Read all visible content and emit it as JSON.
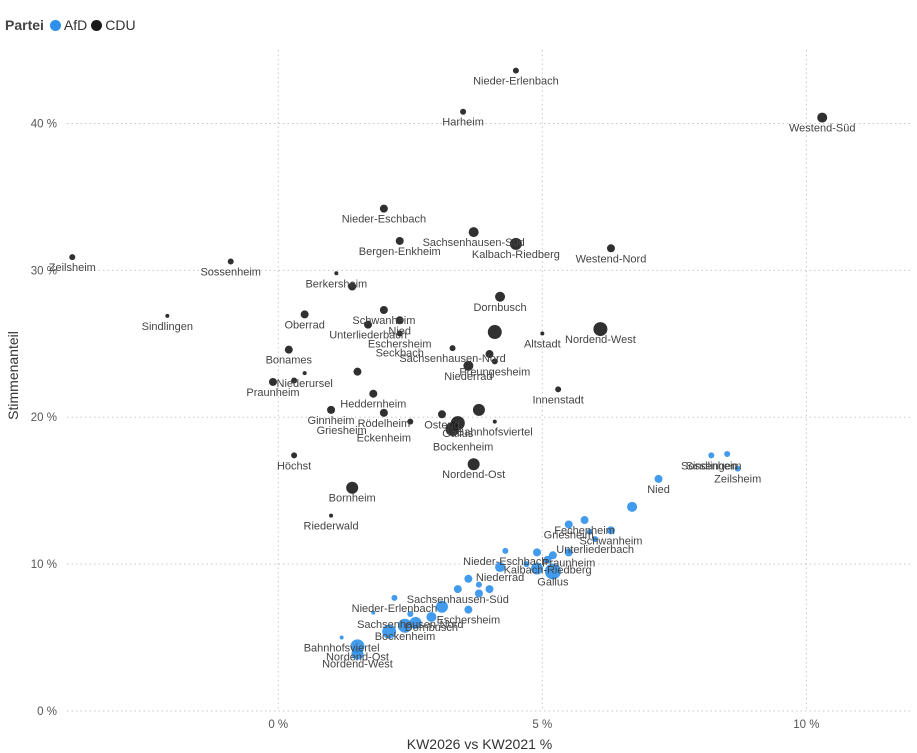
{
  "chart_data": {
    "type": "scatter",
    "legend_title": "Partei",
    "xlabel": "KW2026 vs KW2021 %",
    "ylabel": "Stimmenanteil",
    "xlim": [
      -4,
      12
    ],
    "ylim": [
      0,
      45
    ],
    "x_ticks": [
      "0 %",
      "5 %",
      "10 %"
    ],
    "y_ticks": [
      "0 %",
      "10 %",
      "20 %",
      "30 %",
      "40 %"
    ],
    "x_tick_values": [
      0,
      5,
      10
    ],
    "y_tick_values": [
      0,
      10,
      20,
      30,
      40
    ],
    "grid": true,
    "legend_position": "top-left",
    "series": [
      {
        "name": "AfD",
        "color": "#2d90ea",
        "points": [
          {
            "label": "Sindlingen",
            "x": 8.2,
            "y": 17.4,
            "size": 3
          },
          {
            "label": "",
            "x": 8.5,
            "y": 17.5,
            "size": 3
          },
          {
            "label": "Sossenheim",
            "x": 8.2,
            "y": 17.4,
            "size": 0
          },
          {
            "label": "Zeilsheim",
            "x": 8.7,
            "y": 16.5,
            "size": 3
          },
          {
            "label": "Nied",
            "x": 7.2,
            "y": 15.8,
            "size": 4
          },
          {
            "label": "",
            "x": 6.7,
            "y": 13.9,
            "size": 5
          },
          {
            "label": "Fechenheim",
            "x": 5.8,
            "y": 13.0,
            "size": 4
          },
          {
            "label": "Griesheim",
            "x": 5.5,
            "y": 12.7,
            "size": 4
          },
          {
            "label": "Schwanheim",
            "x": 6.3,
            "y": 12.3,
            "size": 4
          },
          {
            "label": "Unterliederbach",
            "x": 6.0,
            "y": 11.7,
            "size": 3
          },
          {
            "label": "",
            "x": 5.9,
            "y": 12.2,
            "size": 3
          },
          {
            "label": "Nieder-Eschbach",
            "x": 4.3,
            "y": 10.9,
            "size": 3
          },
          {
            "label": "Praunheim",
            "x": 5.5,
            "y": 10.8,
            "size": 4
          },
          {
            "label": "",
            "x": 5.2,
            "y": 10.6,
            "size": 4
          },
          {
            "label": "",
            "x": 4.9,
            "y": 10.8,
            "size": 4
          },
          {
            "label": "Kalbach-Riedberg",
            "x": 5.1,
            "y": 10.3,
            "size": 4
          },
          {
            "label": "",
            "x": 4.7,
            "y": 10.0,
            "size": 3
          },
          {
            "label": "Niederrad",
            "x": 4.2,
            "y": 9.8,
            "size": 5
          },
          {
            "label": "",
            "x": 4.9,
            "y": 9.7,
            "size": 6
          },
          {
            "label": "Gallus",
            "x": 5.2,
            "y": 9.5,
            "size": 8
          },
          {
            "label": "",
            "x": 3.6,
            "y": 9.0,
            "size": 4
          },
          {
            "label": "",
            "x": 3.8,
            "y": 8.6,
            "size": 3
          },
          {
            "label": "Sachsenhausen-Süd",
            "x": 3.4,
            "y": 8.3,
            "size": 4
          },
          {
            "label": "",
            "x": 3.8,
            "y": 8.0,
            "size": 4
          },
          {
            "label": "",
            "x": 4.0,
            "y": 8.3,
            "size": 4
          },
          {
            "label": "Nieder-Erlenbach",
            "x": 2.2,
            "y": 7.7,
            "size": 3
          },
          {
            "label": "Eschersheim",
            "x": 3.6,
            "y": 6.9,
            "size": 4
          },
          {
            "label": "",
            "x": 3.1,
            "y": 7.1,
            "size": 6
          },
          {
            "label": "Sachsenhausen-Nord",
            "x": 2.5,
            "y": 6.6,
            "size": 3
          },
          {
            "label": "",
            "x": 1.8,
            "y": 6.7,
            "size": 2
          },
          {
            "label": "Dornbusch",
            "x": 2.9,
            "y": 6.4,
            "size": 5
          },
          {
            "label": "",
            "x": 2.6,
            "y": 6.0,
            "size": 6
          },
          {
            "label": "Bockenheim",
            "x": 2.4,
            "y": 5.8,
            "size": 7
          },
          {
            "label": "",
            "x": 2.1,
            "y": 5.4,
            "size": 7
          },
          {
            "label": "Bahnhofsviertel",
            "x": 1.2,
            "y": 5.0,
            "size": 2
          },
          {
            "label": "Nordend-Ost",
            "x": 1.5,
            "y": 4.4,
            "size": 7
          },
          {
            "label": "Nordend-West",
            "x": 1.5,
            "y": 3.9,
            "size": 6
          }
        ]
      },
      {
        "name": "CDU",
        "color": "#1a1a1a",
        "points": [
          {
            "label": "Nieder-Erlenbach",
            "x": 4.5,
            "y": 43.6,
            "size": 3
          },
          {
            "label": "Harheim",
            "x": 3.5,
            "y": 40.8,
            "size": 3
          },
          {
            "label": "Westend-Süd",
            "x": 10.3,
            "y": 40.4,
            "size": 5
          },
          {
            "label": "Nieder-Eschbach",
            "x": 2.0,
            "y": 34.2,
            "size": 4
          },
          {
            "label": "Sachsenhausen-Süd",
            "x": 3.7,
            "y": 32.6,
            "size": 5
          },
          {
            "label": "Bergen-Enkheim",
            "x": 2.3,
            "y": 32.0,
            "size": 4
          },
          {
            "label": "Kalbach-Riedberg",
            "x": 4.5,
            "y": 31.8,
            "size": 6
          },
          {
            "label": "Westend-Nord",
            "x": 6.3,
            "y": 31.5,
            "size": 4
          },
          {
            "label": "Zeilsheim",
            "x": -3.9,
            "y": 30.9,
            "size": 3
          },
          {
            "label": "Sossenheim",
            "x": -0.9,
            "y": 30.6,
            "size": 3
          },
          {
            "label": "Berkersheim",
            "x": 1.1,
            "y": 29.8,
            "size": 2
          },
          {
            "label": "",
            "x": 1.4,
            "y": 28.9,
            "size": 4
          },
          {
            "label": "Dornbusch",
            "x": 4.2,
            "y": 28.2,
            "size": 5
          },
          {
            "label": "Oberrad",
            "x": 0.5,
            "y": 27.0,
            "size": 4
          },
          {
            "label": "Sindlingen",
            "x": -2.1,
            "y": 26.9,
            "size": 2
          },
          {
            "label": "Schwanheim",
            "x": 2.0,
            "y": 27.3,
            "size": 4
          },
          {
            "label": "Nied",
            "x": 2.3,
            "y": 26.6,
            "size": 4
          },
          {
            "label": "Unterliederbach",
            "x": 1.7,
            "y": 26.3,
            "size": 4
          },
          {
            "label": "Eschersheim",
            "x": 2.3,
            "y": 25.7,
            "size": 3
          },
          {
            "label": "",
            "x": 4.1,
            "y": 25.8,
            "size": 7
          },
          {
            "label": "Nordend-West",
            "x": 6.1,
            "y": 26.0,
            "size": 7
          },
          {
            "label": "Altstadt",
            "x": 5.0,
            "y": 25.7,
            "size": 2
          },
          {
            "label": "Bonames",
            "x": 0.2,
            "y": 24.6,
            "size": 4
          },
          {
            "label": "Sachsenhausen-Nord",
            "x": 3.3,
            "y": 24.7,
            "size": 3
          },
          {
            "label": "",
            "x": 4.0,
            "y": 24.3,
            "size": 4
          },
          {
            "label": "Seckbach",
            "x": 2.3,
            "y": 25.1,
            "size": 0
          },
          {
            "label": "Preungesheim",
            "x": 4.1,
            "y": 23.8,
            "size": 3
          },
          {
            "label": "Niederursel",
            "x": 0.5,
            "y": 23.0,
            "size": 2
          },
          {
            "label": "",
            "x": 1.5,
            "y": 23.1,
            "size": 4
          },
          {
            "label": "Niederrad",
            "x": 3.6,
            "y": 23.5,
            "size": 5
          },
          {
            "label": "Praunheim",
            "x": -0.1,
            "y": 22.4,
            "size": 4
          },
          {
            "label": "",
            "x": 0.3,
            "y": 22.5,
            "size": 3
          },
          {
            "label": "Heddernheim",
            "x": 1.8,
            "y": 21.6,
            "size": 4
          },
          {
            "label": "Innenstadt",
            "x": 5.3,
            "y": 21.9,
            "size": 3
          },
          {
            "label": "Ginnheim",
            "x": 1.0,
            "y": 20.5,
            "size": 4
          },
          {
            "label": "Rödelheim",
            "x": 2.0,
            "y": 20.3,
            "size": 4
          },
          {
            "label": "Ostend",
            "x": 3.1,
            "y": 20.2,
            "size": 4
          },
          {
            "label": "Griesheim",
            "x": 1.2,
            "y": 19.8,
            "size": 0
          },
          {
            "label": "",
            "x": 2.5,
            "y": 19.7,
            "size": 3
          },
          {
            "label": "Gallus",
            "x": 3.4,
            "y": 19.6,
            "size": 7
          },
          {
            "label": "",
            "x": 3.8,
            "y": 20.5,
            "size": 6
          },
          {
            "label": "Bahnhofsviertel",
            "x": 4.1,
            "y": 19.7,
            "size": 2
          },
          {
            "label": "Eckenheim",
            "x": 2.0,
            "y": 19.3,
            "size": 0
          },
          {
            "label": "",
            "x": 3.3,
            "y": 19.2,
            "size": 7
          },
          {
            "label": "Bockenheim",
            "x": 3.5,
            "y": 18.7,
            "size": 0
          },
          {
            "label": "Höchst",
            "x": 0.3,
            "y": 17.4,
            "size": 3
          },
          {
            "label": "Nordend-Ost",
            "x": 3.7,
            "y": 16.8,
            "size": 6
          },
          {
            "label": "Bornheim",
            "x": 1.4,
            "y": 15.2,
            "size": 6
          },
          {
            "label": "Riederwald",
            "x": 1.0,
            "y": 13.3,
            "size": 2
          }
        ]
      }
    ]
  }
}
